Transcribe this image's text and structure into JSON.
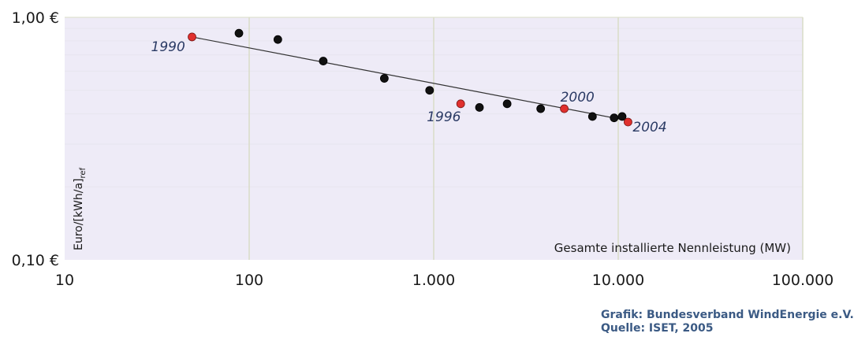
{
  "chart_data": {
    "type": "scatter",
    "title": "",
    "xlabel": "Gesamte installierte Nennleistung (MW)",
    "ylabel": "Euro/[kWh/a]",
    "ylabel_sub": "ref",
    "x_scale": "log",
    "y_scale": "log",
    "xlim": [
      10,
      100000
    ],
    "ylim": [
      0.1,
      1.0
    ],
    "grid": true,
    "legend": "none",
    "x_ticks": [
      {
        "value": 10,
        "label": "10"
      },
      {
        "value": 100,
        "label": "100"
      },
      {
        "value": 1000,
        "label": "1.000"
      },
      {
        "value": 10000,
        "label": "10.000"
      },
      {
        "value": 100000,
        "label": "100.000"
      }
    ],
    "y_ticks": [
      {
        "value": 0.1,
        "label": "0,10 €"
      },
      {
        "value": 1.0,
        "label": "1,00 €"
      }
    ],
    "points": [
      {
        "x": 49,
        "y": 0.83,
        "label": "1990",
        "highlight": true
      },
      {
        "x": 88,
        "y": 0.86,
        "label": "",
        "highlight": false
      },
      {
        "x": 143,
        "y": 0.81,
        "label": "",
        "highlight": false
      },
      {
        "x": 252,
        "y": 0.66,
        "label": "",
        "highlight": false
      },
      {
        "x": 540,
        "y": 0.56,
        "label": "",
        "highlight": false
      },
      {
        "x": 950,
        "y": 0.5,
        "label": "",
        "highlight": false
      },
      {
        "x": 1400,
        "y": 0.44,
        "label": "1996",
        "highlight": true
      },
      {
        "x": 1770,
        "y": 0.425,
        "label": "",
        "highlight": false
      },
      {
        "x": 2500,
        "y": 0.44,
        "label": "",
        "highlight": false
      },
      {
        "x": 3800,
        "y": 0.42,
        "label": "",
        "highlight": false
      },
      {
        "x": 5100,
        "y": 0.42,
        "label": "2000",
        "highlight": true
      },
      {
        "x": 7250,
        "y": 0.39,
        "label": "",
        "highlight": false
      },
      {
        "x": 9500,
        "y": 0.385,
        "label": "",
        "highlight": false
      },
      {
        "x": 10500,
        "y": 0.39,
        "label": "",
        "highlight": false
      },
      {
        "x": 11300,
        "y": 0.37,
        "label": "2004",
        "highlight": true
      }
    ],
    "trendline": {
      "x": [
        49,
        11300
      ],
      "y": [
        0.83,
        0.375
      ]
    },
    "colors": {
      "plot_background": "#eeebf7",
      "grid_major": "#d9dcc7",
      "grid_minor": "#e7e5ef",
      "point": "#111111",
      "highlight_point": "#e0302e",
      "trendline": "#333333",
      "year_label": "#2a3a64"
    }
  },
  "credits": {
    "line1": "Grafik: Bundesverband WindEnergie e.V.",
    "line2": "Quelle: ISET, 2005"
  }
}
